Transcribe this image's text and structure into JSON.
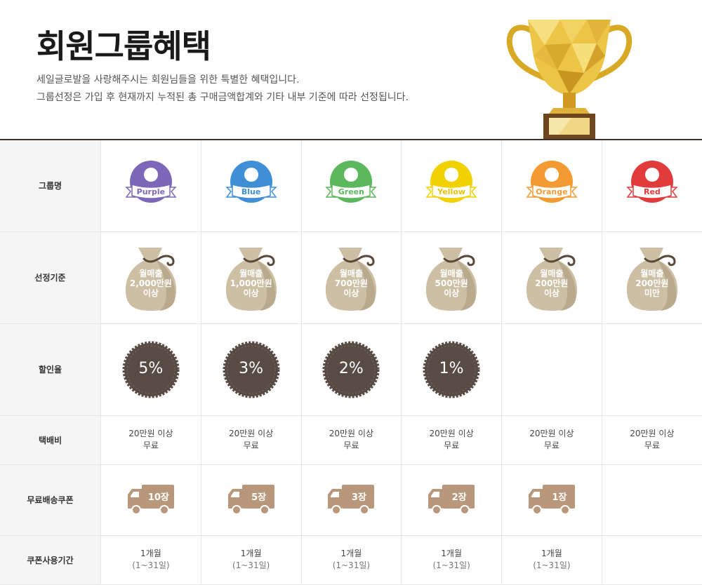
{
  "header": {
    "title": "회원그룹혜택",
    "desc1": "세일글로발을 사랑해주시는 회원님들을 위한 특별한 혜택입니다.",
    "desc2": "그룹선정은 가입 후 현재까지 누적된 총 구매금액합계와 기타 내부 기준에 따라 선정됩니다."
  },
  "row_labels": {
    "name": "그룹명",
    "criteria": "선정기준",
    "discount": "할인율",
    "shipping": "택배비",
    "coupon": "무료배송쿠폰",
    "period": "쿠폰사용기간"
  },
  "colors": {
    "purple": "#7b68b8",
    "blue": "#3e8fd6",
    "green": "#5cb85c",
    "yellow": "#f2d100",
    "orange": "#f39a32",
    "red": "#e23b3b",
    "bag": "#cdbfa4",
    "bag_shadow": "#b9aa8e",
    "seal": "#574b44",
    "truck": "#b8977a",
    "header_rule": "#3c302a"
  },
  "groups": [
    {
      "name": "Purple",
      "color": "#7b68b8",
      "criteria": [
        "월매출",
        "2,000만원",
        "이상"
      ],
      "discount": "5%",
      "shipping": [
        "20만원 이상",
        "무료"
      ],
      "coupon": "10장",
      "period": [
        "1개월",
        "(1~31일)"
      ]
    },
    {
      "name": "Blue",
      "color": "#3e8fd6",
      "criteria": [
        "월매출",
        "1,000만원",
        "이상"
      ],
      "discount": "3%",
      "shipping": [
        "20만원 이상",
        "무료"
      ],
      "coupon": "5장",
      "period": [
        "1개월",
        "(1~31일)"
      ]
    },
    {
      "name": "Green",
      "color": "#5cb85c",
      "criteria": [
        "월매출",
        "700만원",
        "이상"
      ],
      "discount": "2%",
      "shipping": [
        "20만원 이상",
        "무료"
      ],
      "coupon": "3장",
      "period": [
        "1개월",
        "(1~31일)"
      ]
    },
    {
      "name": "Yellow",
      "color": "#f2d100",
      "criteria": [
        "월매출",
        "500만원",
        "이상"
      ],
      "discount": "1%",
      "shipping": [
        "20만원 이상",
        "무료"
      ],
      "coupon": "2장",
      "period": [
        "1개월",
        "(1~31일)"
      ]
    },
    {
      "name": "Orange",
      "color": "#f39a32",
      "criteria": [
        "월매출",
        "200만원",
        "이상"
      ],
      "discount": "",
      "shipping": [
        "20만원 이상",
        "무료"
      ],
      "coupon": "1장",
      "period": [
        "1개월",
        "(1~31일)"
      ]
    },
    {
      "name": "Red",
      "color": "#e23b3b",
      "criteria": [
        "월매출",
        "200만원",
        "미만"
      ],
      "discount": "",
      "shipping": [
        "20만원 이상",
        "무료"
      ],
      "coupon": "",
      "period": [
        "",
        ""
      ]
    }
  ]
}
